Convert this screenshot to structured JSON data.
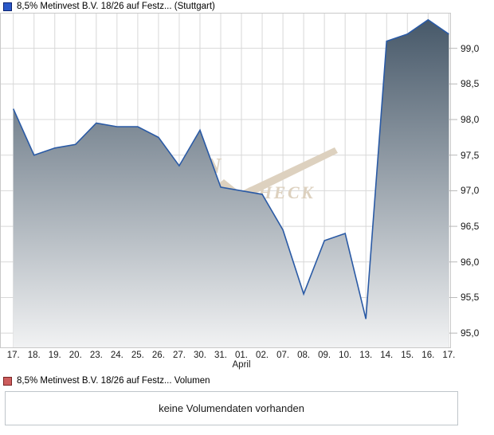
{
  "header": {
    "title": "8,5% Metinvest B.V. 18/26 auf Festz... (Stuttgart)",
    "legend_marker_color": "#2a58c8",
    "legend_marker_border": "#0c2270"
  },
  "chart_data": {
    "type": "area",
    "title": "8,5% Metinvest B.V. 18/26 auf Festz... (Stuttgart)",
    "categories": [
      "17.",
      "18.",
      "19.",
      "20.",
      "23.",
      "24.",
      "25.",
      "26.",
      "27.",
      "30.",
      "31.",
      "01.",
      "02.",
      "07.",
      "08.",
      "09.",
      "10.",
      "13.",
      "14.",
      "15.",
      "16.",
      "17."
    ],
    "values": [
      98.15,
      97.5,
      97.6,
      97.65,
      97.95,
      97.9,
      97.9,
      97.75,
      97.35,
      97.85,
      97.05,
      97.0,
      96.95,
      96.45,
      95.55,
      96.3,
      96.4,
      95.2,
      99.1,
      99.2,
      99.4,
      99.2
    ],
    "month_label": "April",
    "month_label_index": 11,
    "y_ticks": [
      {
        "label": "99,0",
        "value": 99.0
      },
      {
        "label": "98,5",
        "value": 98.5
      },
      {
        "label": "98,0",
        "value": 98.0
      },
      {
        "label": "97,5",
        "value": 97.5
      },
      {
        "label": "97,0",
        "value": 97.0
      },
      {
        "label": "96,5",
        "value": 96.5
      },
      {
        "label": "96,0",
        "value": 96.0
      },
      {
        "label": "95,5",
        "value": 95.5
      },
      {
        "label": "95,0",
        "value": 95.0
      }
    ],
    "ylim": [
      94.8,
      99.5
    ],
    "grid": true,
    "legend_position": "top-left"
  },
  "watermark": {
    "left_text": "N",
    "text": "CHECK",
    "color": "#ddd1bf"
  },
  "volume_section": {
    "label": "8,5% Metinvest B.V. 18/26 auf Festz... Volumen",
    "legend_marker_color": "#cd5d5d",
    "legend_marker_border": "#7a2525",
    "message": "keine Volumendaten vorhanden"
  },
  "colors": {
    "line": "#2a5aa5",
    "area_top": "#435566",
    "area_bottom": "#f1f2f3",
    "grid": "#d8d8d8",
    "frame": "#c9c9c9",
    "tick": "#b8b8b8"
  }
}
